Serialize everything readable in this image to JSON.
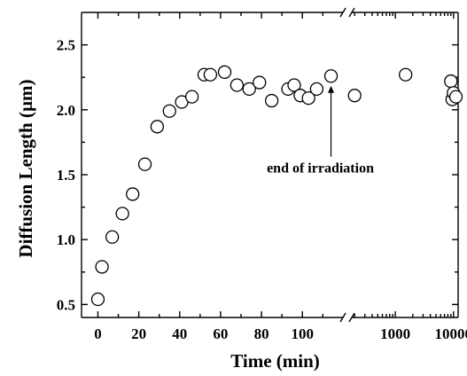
{
  "chart_data": {
    "type": "scatter",
    "xlabel": "Time (min)",
    "ylabel": "Diffusion Length (µm)",
    "ylim": [
      0.4,
      2.75
    ],
    "yticks": [
      "0.5",
      "1.0",
      "1.5",
      "2.0",
      "2.5"
    ],
    "x_axis": {
      "broken": true,
      "linear_segment": {
        "range": [
          -8,
          122
        ],
        "ticks": [
          "0",
          "20",
          "40",
          "60",
          "80",
          "100"
        ]
      },
      "log_segment": {
        "range": [
          150,
          12000
        ],
        "ticks": [
          "1000",
          "10000"
        ]
      }
    },
    "grid": false,
    "legend": "none",
    "marker": "open circle",
    "series": [
      {
        "x": [
          0,
          2,
          7,
          12,
          17,
          23,
          29,
          35,
          41,
          46,
          52,
          55,
          62,
          68,
          74,
          79,
          85,
          93,
          96,
          99,
          103,
          107,
          114,
          200,
          1500,
          9000,
          9500,
          10000,
          11000
        ],
        "y": [
          0.54,
          0.79,
          1.02,
          1.2,
          1.35,
          1.58,
          1.87,
          1.99,
          2.06,
          2.1,
          2.27,
          2.27,
          2.29,
          2.19,
          2.16,
          2.21,
          2.07,
          2.16,
          2.19,
          2.11,
          2.09,
          2.16,
          2.26,
          2.11,
          2.27,
          2.22,
          2.08,
          2.13,
          2.1
        ]
      }
    ],
    "annotations": [
      {
        "text": "end of irradiation",
        "arrow_to": {
          "x": 114,
          "y": 2.26
        }
      }
    ]
  }
}
